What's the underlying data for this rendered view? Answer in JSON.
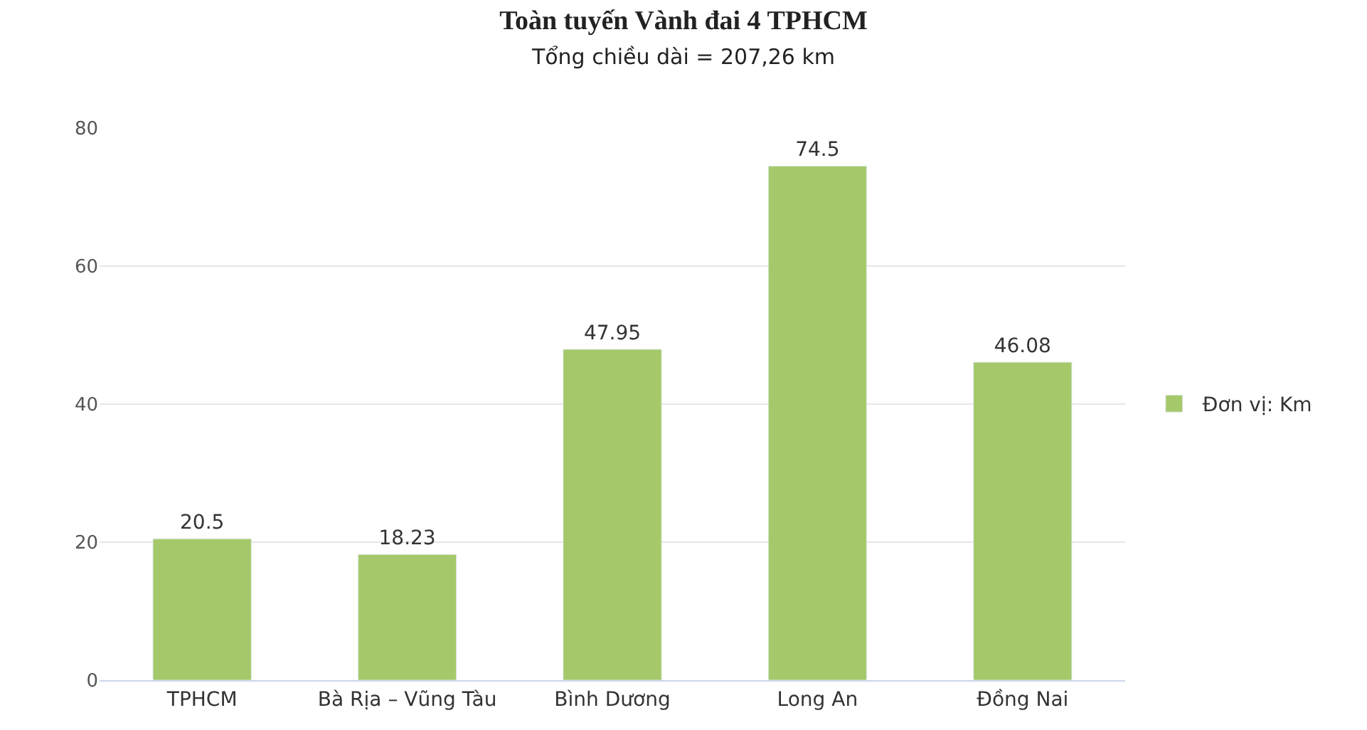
{
  "chart_data": {
    "type": "bar",
    "title": "Toàn tuyến Vành đai 4 TPHCM",
    "subtitle": "Tổng chiều dài = 207,26 km",
    "categories": [
      "TPHCM",
      "Bà Rịa – Vũng Tàu",
      "Bình Dương",
      "Long An",
      "Đồng Nai"
    ],
    "series": [
      {
        "name": "Đơn vị: Km",
        "color": "#a5c96a",
        "values": [
          20.5,
          18.23,
          47.95,
          74.5,
          46.08
        ]
      }
    ],
    "ylim": [
      0,
      80
    ],
    "yticks": [
      0,
      20,
      40,
      60,
      80
    ],
    "grid": "y",
    "legend": "right",
    "data_labels": true
  }
}
